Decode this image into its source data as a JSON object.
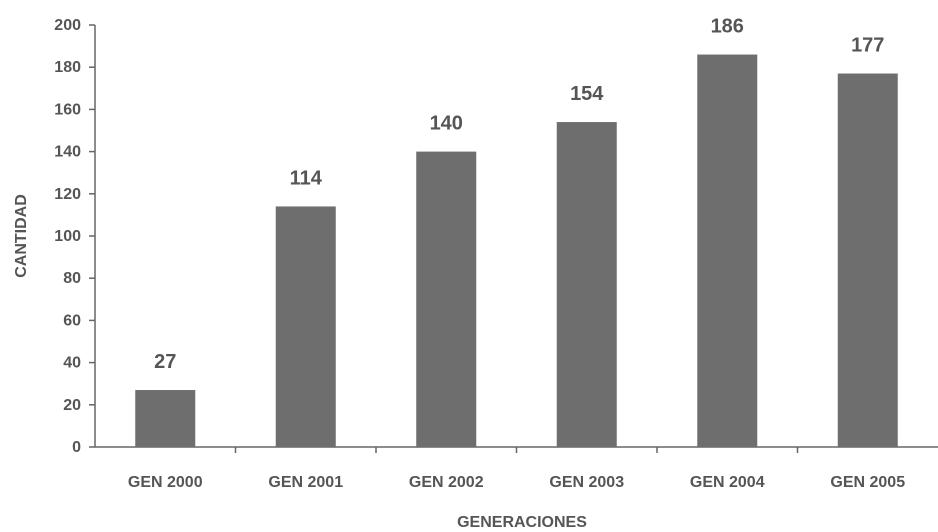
{
  "chart_data": {
    "type": "bar",
    "title": "",
    "xlabel": "GENERACIONES",
    "ylabel": "CANTIDAD",
    "categories": [
      "GEN 2000",
      "GEN 2001",
      "GEN 2002",
      "GEN 2003",
      "GEN 2004",
      "GEN 2005"
    ],
    "values": [
      27,
      114,
      140,
      154,
      186,
      177
    ],
    "data_labels": [
      "27",
      "114",
      "140",
      "154",
      "186",
      "177"
    ],
    "ylim": [
      0,
      200
    ],
    "yticks": [
      0,
      20,
      40,
      60,
      80,
      100,
      120,
      140,
      160,
      180,
      200
    ],
    "bar_color": "#6e6e6e",
    "grid": false,
    "legend": "none"
  }
}
